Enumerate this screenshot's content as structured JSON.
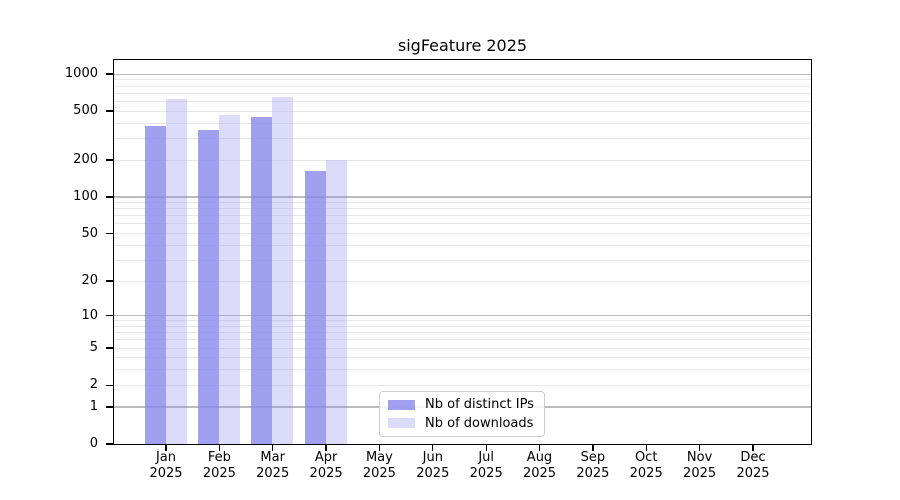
{
  "chart_data": {
    "type": "bar",
    "title": "sigFeature 2025",
    "categories": [
      "Jan 2025",
      "Feb 2025",
      "Mar 2025",
      "Apr 2025",
      "May 2025",
      "Jun 2025",
      "Jul 2025",
      "Aug 2025",
      "Sep 2025",
      "Oct 2025",
      "Nov 2025",
      "Dec 2025"
    ],
    "series": [
      {
        "name": "Nb of distinct IPs",
        "color": "rgba(136,136,238,0.8)",
        "values": [
          375,
          350,
          445,
          160,
          0,
          0,
          0,
          0,
          0,
          0,
          0,
          0
        ]
      },
      {
        "name": "Nb of downloads",
        "color": "rgba(136,136,238,0.3)",
        "values": [
          620,
          465,
          640,
          200,
          0,
          0,
          0,
          0,
          0,
          0,
          0,
          0
        ]
      }
    ],
    "yscale": "log1p",
    "yticks": [
      0,
      1,
      2,
      5,
      10,
      20,
      50,
      100,
      200,
      500,
      1000
    ],
    "ylim": [
      0,
      1300
    ],
    "xlabel": "",
    "ylabel": "",
    "grid": true,
    "legend_position": "lower center"
  },
  "colors": {
    "bar_primary": "#8888ee",
    "major_grid": "#bbbbbb",
    "minor_grid": "#e8e8e8",
    "axis": "#000000",
    "background": "#ffffff"
  }
}
